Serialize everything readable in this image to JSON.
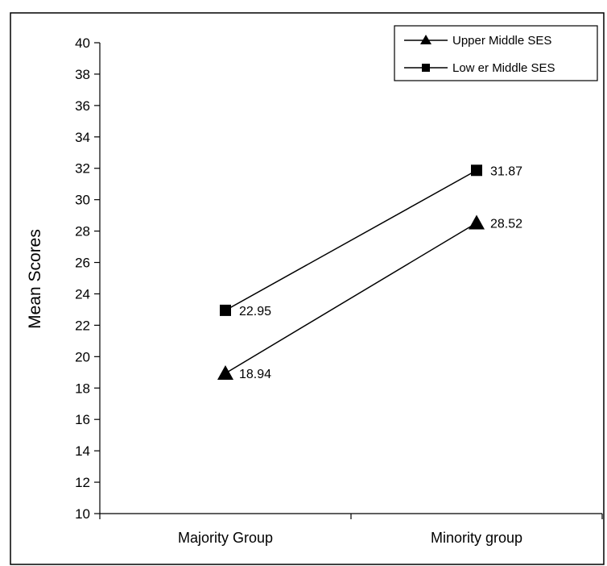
{
  "chart_data": {
    "type": "line",
    "title": "",
    "xlabel": "",
    "ylabel": "Mean Scores",
    "categories": [
      "Majority Group",
      "Minority group"
    ],
    "ylim": [
      10,
      40
    ],
    "yticks": [
      10,
      12,
      14,
      16,
      18,
      20,
      22,
      24,
      26,
      28,
      30,
      32,
      34,
      36,
      38,
      40
    ],
    "ytick_labels": [
      "10",
      "12",
      "14",
      "16",
      "18",
      "20",
      "22",
      "24",
      "26",
      "28",
      "30",
      "32",
      "34",
      "36",
      "38",
      "40"
    ],
    "grid": false,
    "legend_position": "top-right",
    "series": [
      {
        "name": "Upper Middle SES",
        "marker": "triangle",
        "values": [
          18.94,
          28.52
        ],
        "labels": [
          "18.94",
          "28.52"
        ]
      },
      {
        "name": "Low er Middle SES",
        "marker": "square",
        "values": [
          22.95,
          31.87
        ],
        "labels": [
          "22.95",
          "31.87"
        ]
      }
    ]
  }
}
